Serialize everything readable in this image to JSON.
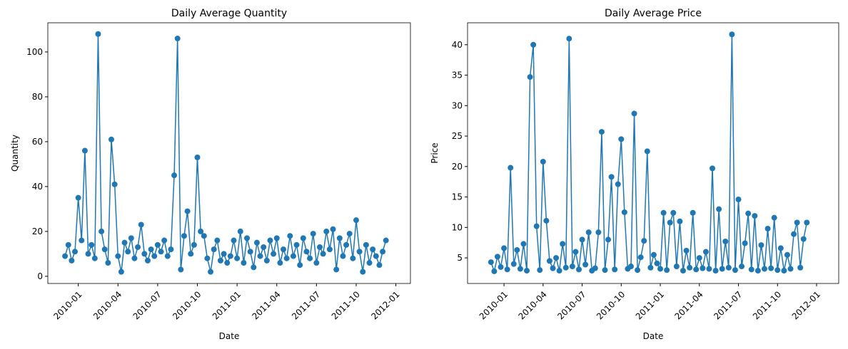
{
  "chart_data": [
    {
      "type": "line",
      "title": "Daily Average Quantity",
      "x_label": "Date",
      "y_label": "Quantity",
      "color": "#1f77b4",
      "markers": true,
      "grid": false,
      "x": [
        -1,
        -0.75,
        -0.5,
        -0.25,
        0,
        0.25,
        0.5,
        0.75,
        1,
        1.25,
        1.5,
        1.75,
        2,
        2.25,
        2.5,
        2.75,
        3,
        3.25,
        3.5,
        3.75,
        4,
        4.25,
        4.5,
        4.75,
        5,
        5.25,
        5.5,
        5.75,
        6,
        6.25,
        6.5,
        6.75,
        7,
        7.25,
        7.5,
        7.75,
        8,
        8.25,
        8.5,
        8.75,
        9,
        9.25,
        9.5,
        9.75,
        10,
        10.25,
        10.5,
        10.75,
        11,
        11.25,
        11.5,
        11.75,
        12,
        12.25,
        12.5,
        12.75,
        13,
        13.25,
        13.5,
        13.75,
        14,
        14.25,
        14.5,
        14.75,
        15,
        15.25,
        15.5,
        15.75,
        16,
        16.25,
        16.5,
        16.75,
        17,
        17.25,
        17.5,
        17.75,
        18,
        18.25,
        18.5,
        18.75,
        19,
        19.25,
        19.5,
        19.75,
        20,
        20.25,
        20.5,
        20.75,
        21,
        21.25,
        21.5,
        21.75,
        22,
        22.25,
        22.5,
        22.75,
        23,
        23.25
      ],
      "values": [
        9,
        14,
        7,
        11,
        35,
        16,
        56,
        10,
        14,
        8,
        108,
        20,
        12,
        6,
        61,
        41,
        9,
        2,
        15,
        11,
        17,
        8,
        13,
        23,
        10,
        7,
        12,
        9,
        14,
        11,
        16,
        9,
        12,
        45,
        106,
        3,
        18,
        29,
        10,
        14,
        53,
        20,
        18,
        8,
        2,
        12,
        16,
        7,
        10,
        6,
        9,
        16,
        8,
        20,
        6,
        17,
        11,
        4,
        15,
        9,
        13,
        7,
        16,
        10,
        17,
        6,
        12,
        8,
        18,
        9,
        14,
        5,
        17,
        11,
        8,
        19,
        6,
        13,
        10,
        20,
        12,
        21,
        3,
        17,
        9,
        14,
        19,
        8,
        25,
        11,
        2,
        14,
        6,
        12,
        9,
        5,
        11,
        16
      ],
      "xlim": [
        -2.3,
        25.1
      ],
      "xticks": [
        {
          "value": 0,
          "label": "2010-01"
        },
        {
          "value": 3,
          "label": "2010-04"
        },
        {
          "value": 6,
          "label": "2010-07"
        },
        {
          "value": 9,
          "label": "2010-10"
        },
        {
          "value": 12,
          "label": "2011-01"
        },
        {
          "value": 15,
          "label": "2011-04"
        },
        {
          "value": 18,
          "label": "2011-07"
        },
        {
          "value": 21,
          "label": "2011-10"
        },
        {
          "value": 24,
          "label": "2012-01"
        }
      ],
      "ylim": [
        -3.2,
        113
      ],
      "yticks": [
        0,
        20,
        40,
        60,
        80,
        100
      ]
    },
    {
      "type": "line",
      "title": "Daily Average Price",
      "x_label": "Date",
      "y_label": "Price",
      "color": "#1f77b4",
      "markers": true,
      "grid": false,
      "x": [
        -1,
        -0.75,
        -0.5,
        -0.25,
        0,
        0.25,
        0.5,
        0.75,
        1,
        1.25,
        1.5,
        1.75,
        2,
        2.25,
        2.5,
        2.75,
        3,
        3.25,
        3.5,
        3.75,
        4,
        4.25,
        4.5,
        4.75,
        5,
        5.25,
        5.5,
        5.75,
        6,
        6.25,
        6.5,
        6.75,
        7,
        7.25,
        7.5,
        7.75,
        8,
        8.25,
        8.5,
        8.75,
        9,
        9.25,
        9.5,
        9.75,
        10,
        10.25,
        10.5,
        10.75,
        11,
        11.25,
        11.5,
        11.75,
        12,
        12.25,
        12.5,
        12.75,
        13,
        13.25,
        13.5,
        13.75,
        14,
        14.25,
        14.5,
        14.75,
        15,
        15.25,
        15.5,
        15.75,
        16,
        16.25,
        16.5,
        16.75,
        17,
        17.25,
        17.5,
        17.75,
        18,
        18.25,
        18.5,
        18.75,
        19,
        19.25,
        19.5,
        19.75,
        20,
        20.25,
        20.5,
        20.75,
        21,
        21.25,
        21.5,
        21.75,
        22,
        22.25,
        22.5,
        22.75,
        23,
        23.25
      ],
      "values": [
        4.3,
        2.8,
        5.2,
        3.5,
        6.6,
        3.1,
        19.8,
        4.0,
        6.3,
        3.2,
        7.3,
        2.9,
        34.7,
        40.0,
        10.2,
        3.0,
        20.8,
        11.1,
        4.5,
        3.3,
        5.0,
        2.9,
        7.3,
        3.4,
        41.0,
        3.6,
        6.0,
        3.1,
        8.0,
        3.9,
        9.2,
        2.9,
        3.3,
        9.2,
        25.7,
        3.0,
        8.0,
        18.3,
        3.1,
        17.1,
        24.5,
        12.5,
        3.2,
        3.6,
        28.7,
        3.0,
        5.1,
        7.8,
        22.5,
        3.4,
        5.5,
        4.1,
        3.2,
        12.4,
        3.0,
        10.8,
        12.4,
        3.6,
        11.0,
        2.9,
        6.2,
        3.4,
        12.4,
        3.1,
        5.0,
        3.3,
        6.0,
        3.2,
        19.7,
        2.9,
        13.0,
        3.2,
        7.7,
        3.4,
        41.7,
        3.0,
        14.6,
        3.6,
        7.4,
        12.3,
        3.1,
        11.9,
        2.9,
        7.1,
        3.2,
        9.8,
        3.3,
        11.6,
        3.0,
        6.6,
        2.9,
        5.5,
        3.2,
        8.9,
        10.8,
        3.4,
        8.1,
        10.8
      ],
      "xlim": [
        -2.8,
        25.7
      ],
      "xticks": [
        {
          "value": 0,
          "label": "2010-01"
        },
        {
          "value": 3,
          "label": "2010-04"
        },
        {
          "value": 6,
          "label": "2010-07"
        },
        {
          "value": 9,
          "label": "2010-10"
        },
        {
          "value": 12,
          "label": "2011-01"
        },
        {
          "value": 15,
          "label": "2011-04"
        },
        {
          "value": 18,
          "label": "2011-07"
        },
        {
          "value": 21,
          "label": "2011-10"
        },
        {
          "value": 24,
          "label": "2012-01"
        }
      ],
      "ylim": [
        0.8,
        43.6
      ],
      "yticks": [
        5,
        10,
        15,
        20,
        25,
        30,
        35,
        40
      ]
    }
  ]
}
